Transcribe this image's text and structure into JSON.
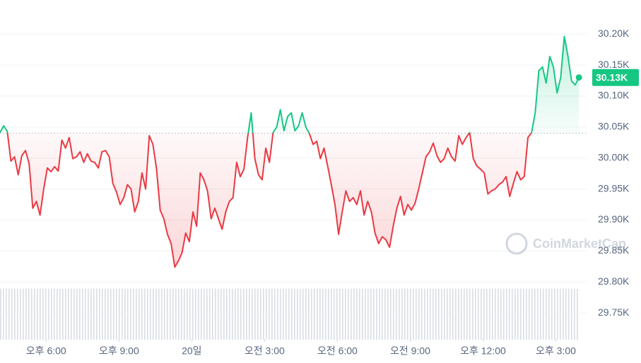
{
  "chart_data": {
    "type": "line",
    "x": [
      -114,
      -105,
      -96,
      -87,
      -78,
      -69,
      -60,
      -51,
      -42,
      -33,
      -24,
      -15,
      -6,
      3,
      12,
      21,
      30,
      39,
      48,
      57,
      66,
      75,
      84,
      93,
      102,
      111,
      120,
      129,
      138,
      147,
      156,
      165,
      174,
      183,
      192,
      201,
      210,
      219,
      228,
      237,
      246,
      255,
      264,
      273,
      282,
      291,
      300,
      309,
      318,
      327,
      336,
      345,
      354,
      363,
      372,
      381,
      390,
      399,
      408,
      417,
      426,
      435,
      444,
      453,
      462,
      471,
      480,
      489,
      498,
      507,
      516,
      525,
      534,
      543,
      552,
      561,
      570,
      579,
      588,
      597,
      606,
      615,
      624,
      633,
      642,
      651,
      660,
      669,
      678,
      687,
      696,
      705,
      714,
      723,
      732,
      741,
      750,
      759,
      768,
      777,
      786,
      795,
      804,
      813,
      822,
      831,
      840,
      849,
      858,
      867,
      876,
      885,
      894,
      903,
      912,
      921,
      930,
      939,
      948,
      957,
      966,
      975,
      984,
      993,
      1002,
      1011,
      1020,
      1029,
      1038,
      1047,
      1056,
      1065,
      1074,
      1083,
      1092,
      1101,
      1110,
      1119,
      1128,
      1137,
      1146,
      1155,
      1164,
      1173,
      1182,
      1191,
      1200,
      1209,
      1218,
      1227,
      1236,
      1245,
      1254,
      1263,
      1272,
      1281,
      1290,
      1299,
      1308,
      1317
    ],
    "values": [
      30041,
      30052,
      30043,
      29995,
      30002,
      29973,
      30004,
      30012,
      29991,
      29919,
      29930,
      29908,
      29950,
      29984,
      29978,
      29986,
      29979,
      30029,
      30016,
      30033,
      29999,
      30002,
      30010,
      29993,
      30007,
      29995,
      29993,
      29984,
      30010,
      30012,
      30002,
      29959,
      29945,
      29925,
      29936,
      29957,
      29950,
      29913,
      29930,
      29976,
      29950,
      30036,
      30022,
      29982,
      29916,
      29902,
      29877,
      29862,
      29824,
      29834,
      29847,
      29879,
      29865,
      29913,
      29890,
      29976,
      29965,
      29947,
      29902,
      29919,
      29902,
      29885,
      29913,
      29930,
      29936,
      29993,
      29970,
      29982,
      30033,
      30073,
      29999,
      29973,
      29965,
      30016,
      29993,
      30041,
      30050,
      30078,
      30044,
      30067,
      30073,
      30044,
      30052,
      30073,
      30050,
      30039,
      30022,
      30027,
      29999,
      30016,
      29987,
      29957,
      29925,
      29877,
      29913,
      29947,
      29930,
      29936,
      29925,
      29947,
      29908,
      29930,
      29913,
      29879,
      29862,
      29873,
      29868,
      29856,
      29890,
      29919,
      29938,
      29908,
      29925,
      29916,
      29927,
      29950,
      29976,
      30002,
      30010,
      30024,
      30004,
      29993,
      29999,
      30016,
      30002,
      29995,
      30036,
      30022,
      30033,
      30041,
      29999,
      29987,
      29982,
      29976,
      29942,
      29947,
      29950,
      29957,
      29961,
      29970,
      29938,
      29959,
      29978,
      29965,
      29970,
      30033,
      30041,
      30073,
      30141,
      30147,
      30121,
      30164,
      30147,
      30105,
      30130,
      30196,
      30164,
      30124,
      30118,
      30130
    ],
    "baseline": 30040,
    "colors": {
      "up": "#16c784",
      "down": "#ea3943"
    },
    "current": {
      "value": 30130,
      "label": "30.13K"
    },
    "watermark": "CoinMarketCap",
    "xlim": [
      -114,
      1336
    ],
    "ylim": [
      29708,
      30255
    ],
    "xticks": [
      {
        "value": 0,
        "label": "오후 6:00"
      },
      {
        "value": 180,
        "label": "오후 9:00"
      },
      {
        "value": 360,
        "label": "20일"
      },
      {
        "value": 540,
        "label": "오전 3:00"
      },
      {
        "value": 720,
        "label": "오전 6:00"
      },
      {
        "value": 900,
        "label": "오전 9:00"
      },
      {
        "value": 1080,
        "label": "오후 12:00"
      },
      {
        "value": 1260,
        "label": "오후 3:00"
      }
    ],
    "yticks": [
      {
        "value": 29750,
        "label": "29.75K"
      },
      {
        "value": 29800,
        "label": "29.80K"
      },
      {
        "value": 29850,
        "label": "29.85K"
      },
      {
        "value": 29900,
        "label": "29.90K"
      },
      {
        "value": 29950,
        "label": "29.95K"
      },
      {
        "value": 30000,
        "label": "30.00K"
      },
      {
        "value": 30050,
        "label": "30.05K"
      },
      {
        "value": 30100,
        "label": "30.10K"
      },
      {
        "value": 30150,
        "label": "30.15K"
      },
      {
        "value": 30200,
        "label": "30.20K"
      }
    ],
    "grid": true
  }
}
